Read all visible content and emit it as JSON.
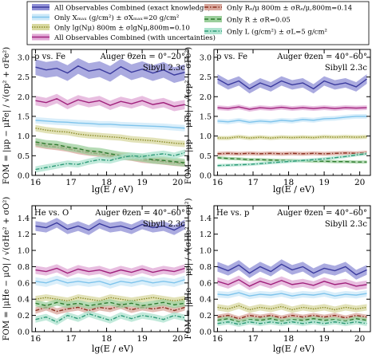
{
  "legend": {
    "entries": [
      {
        "label": "All Observables Combined (exact knowledge)",
        "color": "#3b3b9e",
        "fill": "#8f8fd6",
        "style": "solid"
      },
      {
        "label": "Only Xₘₐₓ (g/cm²) ± σXₘₐₓ=20 g/cm²",
        "color": "#7fc4ec",
        "fill": "#cce8f8",
        "style": "solid"
      },
      {
        "label": "Only lg(Nμ) 800m ± σlgNμ,800m=0.10",
        "color": "#8c8c2a",
        "fill": "#d8d8a0",
        "style": "dotted"
      },
      {
        "label": "All Observables Combined (with uncertainties)",
        "color": "#a0227c",
        "fill": "#e0a8d6",
        "style": "solid"
      },
      {
        "label": "Only Rₑ/μ 800m ± σRₑ/μ,800m=0.14",
        "color": "#8a3020",
        "fill": "#d9a79c",
        "style": "dashdot"
      },
      {
        "label": "Only R ± σR=0.05",
        "color": "#2e7a2e",
        "fill": "#9ccf9c",
        "style": "dashed"
      },
      {
        "label": "Only L (g/cm²) ± σL=5 g/cm²",
        "color": "#2e9a78",
        "fill": "#aee3cf",
        "style": "dashdot"
      }
    ]
  },
  "xlabel": "lg(E / eV)",
  "ylabel_left_top": "FOM = |μp − μFe| / √(σp² + σFe²)",
  "ylabel_left_bottom": "FOM = |μHe − μO| / √(σHe² + σO²)",
  "ylabel_right_bottom": "FOM = |μHe − μp| / √(σHe² + σp²)",
  "chart_data": [
    {
      "type": "line",
      "panel": "top-left",
      "pair": "p vs. Fe",
      "annotation": "Auger  θzen = 0°–20°",
      "model": "Sibyll 2.3c",
      "xlim": [
        15.9,
        20.3
      ],
      "ylim": [
        0,
        3.2
      ],
      "xticks": [
        16,
        17,
        18,
        19,
        20
      ],
      "yticks": [
        0.0,
        0.5,
        1.0,
        1.5,
        2.0,
        2.5,
        3.0
      ],
      "x": [
        16.0,
        16.3,
        16.6,
        16.9,
        17.2,
        17.5,
        17.8,
        18.1,
        18.4,
        18.7,
        19.0,
        19.3,
        19.6,
        19.9,
        20.2
      ],
      "series": [
        {
          "id": 0,
          "values": [
            2.75,
            2.68,
            2.72,
            2.6,
            2.78,
            2.65,
            2.7,
            2.58,
            2.76,
            2.62,
            2.7,
            2.6,
            2.68,
            2.55,
            2.62
          ],
          "band": 0.2
        },
        {
          "id": 1,
          "values": [
            1.4,
            1.38,
            1.36,
            1.35,
            1.33,
            1.32,
            1.3,
            1.3,
            1.28,
            1.27,
            1.26,
            1.25,
            1.24,
            1.22,
            1.2
          ],
          "band": 0.08
        },
        {
          "id": 2,
          "values": [
            1.2,
            1.15,
            1.12,
            1.1,
            1.05,
            1.02,
            1.0,
            0.98,
            0.96,
            0.92,
            0.9,
            0.88,
            0.85,
            0.82,
            0.8
          ],
          "band": 0.08
        },
        {
          "id": 3,
          "values": [
            1.9,
            1.85,
            1.95,
            1.8,
            1.92,
            1.85,
            1.9,
            1.78,
            1.88,
            1.82,
            1.9,
            1.8,
            1.85,
            1.75,
            1.8
          ],
          "band": 0.12
        },
        {
          "id": 4,
          "values": [
            0.8,
            0.75,
            0.72,
            0.68,
            0.62,
            0.58,
            0.55,
            0.5,
            0.48,
            0.45,
            0.4,
            0.38,
            0.35,
            0.32,
            0.3
          ],
          "band": 0.08
        },
        {
          "id": 5,
          "values": [
            0.85,
            0.8,
            0.78,
            0.72,
            0.68,
            0.62,
            0.6,
            0.55,
            0.5,
            0.48,
            0.45,
            0.4,
            0.38,
            0.35,
            0.32
          ],
          "band": 0.1
        },
        {
          "id": 6,
          "values": [
            0.15,
            0.2,
            0.25,
            0.3,
            0.28,
            0.35,
            0.4,
            0.38,
            0.45,
            0.5,
            0.48,
            0.52,
            0.55,
            0.5,
            0.58
          ],
          "band": 0.08
        }
      ]
    },
    {
      "type": "line",
      "panel": "top-right",
      "pair": "p vs. Fe",
      "annotation": "Auger  θzen = 40°–60°",
      "model": "Sibyll 2.3c",
      "xlim": [
        15.9,
        20.3
      ],
      "ylim": [
        0,
        3.2
      ],
      "xticks": [
        16,
        17,
        18,
        19,
        20
      ],
      "yticks": [
        0.0,
        0.5,
        1.0,
        1.5,
        2.0,
        2.5,
        3.0
      ],
      "x": [
        16.0,
        16.3,
        16.6,
        16.9,
        17.2,
        17.5,
        17.8,
        18.1,
        18.4,
        18.7,
        19.0,
        19.3,
        19.6,
        19.9,
        20.2
      ],
      "series": [
        {
          "id": 0,
          "values": [
            2.45,
            2.3,
            2.4,
            2.2,
            2.35,
            2.25,
            2.4,
            2.3,
            2.35,
            2.2,
            2.4,
            2.3,
            2.35,
            2.25,
            2.45
          ],
          "band": 0.12
        },
        {
          "id": 1,
          "values": [
            1.38,
            1.36,
            1.4,
            1.35,
            1.38,
            1.36,
            1.4,
            1.38,
            1.42,
            1.4,
            1.44,
            1.45,
            1.48,
            1.5,
            1.5
          ],
          "band": 0.06
        },
        {
          "id": 2,
          "values": [
            0.95,
            0.95,
            0.98,
            0.95,
            0.97,
            0.95,
            0.97,
            0.96,
            0.97,
            0.96,
            0.98,
            0.97,
            0.98,
            0.97,
            0.98
          ],
          "band": 0.05
        },
        {
          "id": 3,
          "values": [
            1.72,
            1.7,
            1.74,
            1.68,
            1.72,
            1.7,
            1.73,
            1.7,
            1.72,
            1.7,
            1.72,
            1.7,
            1.72,
            1.71,
            1.72
          ],
          "band": 0.06
        },
        {
          "id": 4,
          "values": [
            0.55,
            0.56,
            0.55,
            0.56,
            0.55,
            0.56,
            0.55,
            0.56,
            0.55,
            0.56,
            0.55,
            0.56,
            0.57,
            0.56,
            0.58
          ],
          "band": 0.05
        },
        {
          "id": 5,
          "values": [
            0.45,
            0.43,
            0.42,
            0.4,
            0.4,
            0.39,
            0.38,
            0.38,
            0.37,
            0.36,
            0.36,
            0.35,
            0.35,
            0.34,
            0.34
          ],
          "band": 0.04
        },
        {
          "id": 6,
          "values": [
            0.25,
            0.26,
            0.27,
            0.28,
            0.3,
            0.32,
            0.34,
            0.36,
            0.38,
            0.4,
            0.42,
            0.45,
            0.48,
            0.52,
            0.55
          ],
          "band": 0.04
        }
      ]
    },
    {
      "type": "line",
      "panel": "bottom-left",
      "pair": "He vs. O",
      "annotation": "Auger  θzen = 40°–60°",
      "model": "Sibyll 2.3c",
      "xlim": [
        15.9,
        20.3
      ],
      "ylim": [
        0,
        1.55
      ],
      "xticks": [
        16,
        17,
        18,
        19,
        20
      ],
      "yticks": [
        0.0,
        0.2,
        0.4,
        0.6,
        0.8,
        1.0,
        1.2,
        1.4
      ],
      "x": [
        16.0,
        16.3,
        16.6,
        16.9,
        17.2,
        17.5,
        17.8,
        18.1,
        18.4,
        18.7,
        19.0,
        19.3,
        19.6,
        19.9,
        20.2
      ],
      "series": [
        {
          "id": 0,
          "values": [
            1.3,
            1.28,
            1.34,
            1.26,
            1.3,
            1.25,
            1.33,
            1.28,
            1.3,
            1.26,
            1.32,
            1.28,
            1.3,
            1.25,
            1.32
          ],
          "band": 0.06
        },
        {
          "id": 1,
          "values": [
            0.62,
            0.6,
            0.64,
            0.6,
            0.62,
            0.6,
            0.62,
            0.58,
            0.62,
            0.6,
            0.63,
            0.6,
            0.62,
            0.6,
            0.64
          ],
          "band": 0.05
        },
        {
          "id": 2,
          "values": [
            0.4,
            0.42,
            0.4,
            0.38,
            0.42,
            0.4,
            0.38,
            0.42,
            0.4,
            0.38,
            0.4,
            0.42,
            0.4,
            0.38,
            0.4
          ],
          "band": 0.04
        },
        {
          "id": 3,
          "values": [
            0.76,
            0.74,
            0.78,
            0.72,
            0.77,
            0.74,
            0.76,
            0.72,
            0.76,
            0.73,
            0.77,
            0.73,
            0.76,
            0.74,
            0.78
          ],
          "band": 0.05
        },
        {
          "id": 4,
          "values": [
            0.26,
            0.3,
            0.25,
            0.28,
            0.3,
            0.26,
            0.3,
            0.28,
            0.32,
            0.27,
            0.3,
            0.28,
            0.3,
            0.26,
            0.3
          ],
          "band": 0.04
        },
        {
          "id": 5,
          "values": [
            0.35,
            0.32,
            0.36,
            0.33,
            0.35,
            0.32,
            0.34,
            0.36,
            0.33,
            0.35,
            0.32,
            0.34,
            0.36,
            0.33,
            0.35
          ],
          "band": 0.04
        },
        {
          "id": 6,
          "values": [
            0.15,
            0.18,
            0.12,
            0.2,
            0.16,
            0.22,
            0.18,
            0.14,
            0.2,
            0.16,
            0.2,
            0.18,
            0.15,
            0.2,
            0.17
          ],
          "band": 0.04
        }
      ]
    },
    {
      "type": "line",
      "panel": "bottom-right",
      "pair": "He vs. p",
      "annotation": "Auger  θzen = 40°–60°",
      "model": "Sibyll 2.3c",
      "xlim": [
        15.9,
        20.3
      ],
      "ylim": [
        0,
        1.55
      ],
      "xticks": [
        16,
        17,
        18,
        19,
        20
      ],
      "yticks": [
        0.0,
        0.2,
        0.4,
        0.6,
        0.8,
        1.0,
        1.2,
        1.4
      ],
      "x": [
        16.0,
        16.3,
        16.6,
        16.9,
        17.2,
        17.5,
        17.8,
        18.1,
        18.4,
        18.7,
        19.0,
        19.3,
        19.6,
        19.9,
        20.2
      ],
      "series": [
        {
          "id": 0,
          "values": [
            0.8,
            0.75,
            0.82,
            0.72,
            0.8,
            0.74,
            0.83,
            0.76,
            0.8,
            0.72,
            0.78,
            0.75,
            0.8,
            0.7,
            0.76
          ],
          "band": 0.06
        },
        {
          "id": 1,
          "values": [
            0.46,
            0.45,
            0.48,
            0.44,
            0.46,
            0.45,
            0.47,
            0.44,
            0.46,
            0.45,
            0.47,
            0.44,
            0.46,
            0.45,
            0.47
          ],
          "band": 0.04
        },
        {
          "id": 2,
          "values": [
            0.3,
            0.28,
            0.32,
            0.27,
            0.3,
            0.28,
            0.31,
            0.27,
            0.3,
            0.28,
            0.3,
            0.27,
            0.3,
            0.28,
            0.3
          ],
          "band": 0.04
        },
        {
          "id": 3,
          "values": [
            0.62,
            0.58,
            0.64,
            0.56,
            0.62,
            0.58,
            0.63,
            0.58,
            0.6,
            0.57,
            0.62,
            0.58,
            0.6,
            0.56,
            0.58
          ],
          "band": 0.05
        },
        {
          "id": 4,
          "values": [
            0.18,
            0.2,
            0.16,
            0.2,
            0.18,
            0.2,
            0.17,
            0.2,
            0.18,
            0.2,
            0.18,
            0.2,
            0.17,
            0.2,
            0.18
          ],
          "band": 0.03
        },
        {
          "id": 5,
          "values": [
            0.14,
            0.16,
            0.12,
            0.15,
            0.14,
            0.16,
            0.13,
            0.15,
            0.14,
            0.16,
            0.14,
            0.15,
            0.13,
            0.16,
            0.14
          ],
          "band": 0.03
        },
        {
          "id": 6,
          "values": [
            0.1,
            0.12,
            0.09,
            0.12,
            0.1,
            0.12,
            0.1,
            0.12,
            0.1,
            0.12,
            0.1,
            0.12,
            0.1,
            0.12,
            0.1
          ],
          "band": 0.03
        }
      ]
    }
  ]
}
